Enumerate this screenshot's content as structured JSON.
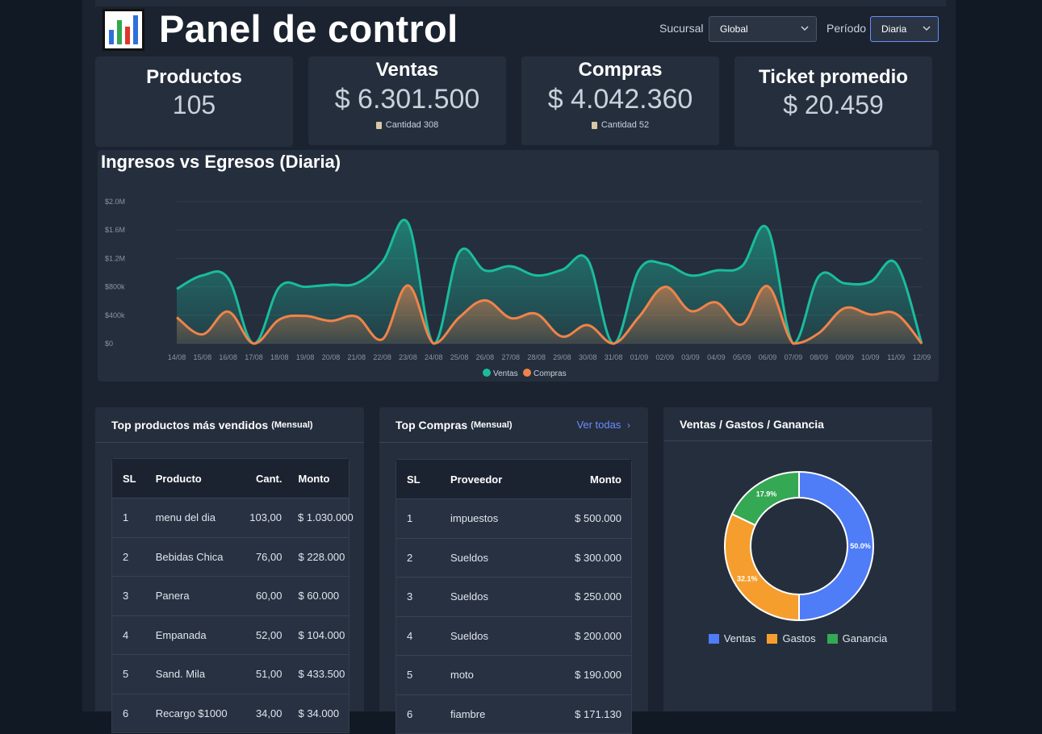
{
  "header": {
    "title": "Panel de control",
    "logo_icon": "bar-chart-icon",
    "branch_label": "Sucursal",
    "branch_value": "Global",
    "period_label": "Período",
    "period_value": "Diaria"
  },
  "stats": [
    {
      "title": "Productos",
      "value": "105",
      "sub": ""
    },
    {
      "title": "Ventas",
      "value": "$ 6.301.500",
      "sub": "Cantidad 308"
    },
    {
      "title": "Compras",
      "value": "$ 4.042.360",
      "sub": "Cantidad 52"
    },
    {
      "title": "Ticket promedio",
      "value": "$ 20.459",
      "sub": ""
    }
  ],
  "chart_data": {
    "type": "area",
    "title": "Ingresos vs Egresos (Diaria)",
    "x": [
      "14/08",
      "15/08",
      "16/08",
      "17/08",
      "18/08",
      "19/08",
      "20/08",
      "21/08",
      "22/08",
      "23/08",
      "24/08",
      "25/08",
      "26/08",
      "27/08",
      "28/08",
      "29/08",
      "30/08",
      "31/08",
      "01/09",
      "02/09",
      "03/09",
      "04/09",
      "05/09",
      "06/09",
      "07/09",
      "08/09",
      "09/09",
      "10/09",
      "11/09",
      "12/09"
    ],
    "y_ticks": [
      "$0",
      "$400k",
      "$800k",
      "$1.2M",
      "$1.6M",
      "$2.0M"
    ],
    "ylim": [
      0,
      2000000
    ],
    "series": [
      {
        "name": "Ventas",
        "color": "#1abc9c",
        "values": [
          770000,
          960000,
          920000,
          0,
          800000,
          800000,
          830000,
          850000,
          1150000,
          1700000,
          0,
          1290000,
          1030000,
          1090000,
          960000,
          1040000,
          1180000,
          0,
          1040000,
          1120000,
          960000,
          1030000,
          1090000,
          1620000,
          0,
          950000,
          850000,
          870000,
          1130000,
          0
        ]
      },
      {
        "name": "Compras",
        "color": "#f0834a",
        "values": [
          370000,
          130000,
          450000,
          0,
          340000,
          390000,
          320000,
          380000,
          60000,
          820000,
          0,
          370000,
          610000,
          360000,
          420000,
          100000,
          260000,
          0,
          380000,
          800000,
          460000,
          580000,
          270000,
          810000,
          0,
          150000,
          500000,
          410000,
          420000,
          0
        ]
      }
    ],
    "legend_position": "bottom"
  },
  "top_products": {
    "title": "Top productos más vendidos",
    "period": "(Mensual)",
    "columns": [
      "SL",
      "Producto",
      "Cant.",
      "Monto"
    ],
    "rows": [
      [
        "1",
        "menu del dia",
        "103,00",
        "$ 1.030.000"
      ],
      [
        "2",
        "Bebidas Chica",
        "76,00",
        "$ 228.000"
      ],
      [
        "3",
        "Panera",
        "60,00",
        "$ 60.000"
      ],
      [
        "4",
        "Empanada",
        "52,00",
        "$ 104.000"
      ],
      [
        "5",
        "Sand. Mila",
        "51,00",
        "$ 433.500"
      ],
      [
        "6",
        "Recargo $1000",
        "34,00",
        "$ 34.000"
      ]
    ]
  },
  "top_purchases": {
    "title": "Top Compras",
    "period": "(Mensual)",
    "link_label": "Ver todas",
    "columns": [
      "SL",
      "Proveedor",
      "Monto"
    ],
    "rows": [
      [
        "1",
        "impuestos",
        "$ 500.000"
      ],
      [
        "2",
        "Sueldos",
        "$ 300.000"
      ],
      [
        "3",
        "Sueldos",
        "$ 250.000"
      ],
      [
        "4",
        "Sueldos",
        "$ 200.000"
      ],
      [
        "5",
        "moto",
        "$ 190.000"
      ],
      [
        "6",
        "fiambre",
        "$ 171.130"
      ]
    ]
  },
  "donut": {
    "title": "Ventas / Gastos / Ganancia",
    "slices": [
      {
        "name": "Ventas",
        "value": 50.0,
        "label": "50.0%",
        "color": "#4f7cf7"
      },
      {
        "name": "Gastos",
        "value": 32.1,
        "label": "32.1%",
        "color": "#f59e2e"
      },
      {
        "name": "Ganancia",
        "value": 17.9,
        "label": "17.9%",
        "color": "#35a853"
      }
    ]
  }
}
